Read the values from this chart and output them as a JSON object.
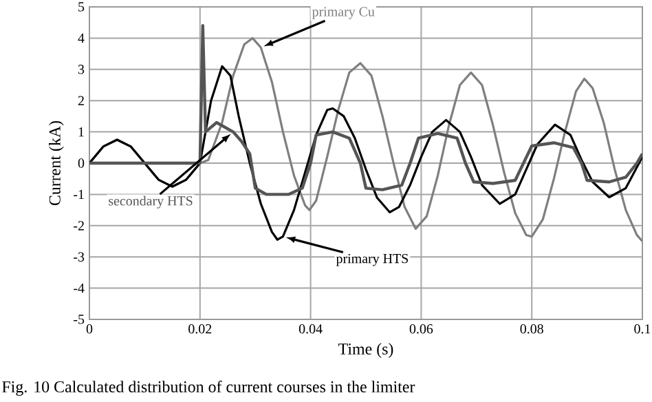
{
  "chart_data": {
    "type": "line",
    "xlabel": "Time (s)",
    "ylabel": "Current (kA)",
    "xlim": [
      0,
      0.1
    ],
    "xticks": [
      0,
      0.02,
      0.04,
      0.06,
      0.08,
      {
        "value": 0.1,
        "label": "0.1"
      }
    ],
    "ylim": [
      -5,
      5
    ],
    "yticks": [
      -5,
      -4,
      -3,
      -2,
      -1,
      0,
      1,
      2,
      3,
      4,
      5
    ],
    "grid": true,
    "line_style": "solid",
    "series": [
      {
        "name": "primary Cu",
        "color": "#7f7f7f",
        "x": [
          0,
          0.0025,
          0.005,
          0.0075,
          0.01,
          0.0125,
          0.015,
          0.0175,
          0.02,
          0.0215,
          0.024,
          0.026,
          0.028,
          0.0295,
          0.031,
          0.033,
          0.035,
          0.037,
          0.039,
          0.0398,
          0.041,
          0.043,
          0.045,
          0.047,
          0.049,
          0.051,
          0.053,
          0.055,
          0.057,
          0.059,
          0.061,
          0.063,
          0.065,
          0.067,
          0.069,
          0.071,
          0.073,
          0.075,
          0.077,
          0.079,
          0.08,
          0.082,
          0.084,
          0.086,
          0.088,
          0.0895,
          0.091,
          0.093,
          0.095,
          0.097,
          0.099,
          0.1
        ],
        "values": [
          0,
          0.53,
          0.75,
          0.53,
          0,
          -0.53,
          -0.75,
          -0.53,
          0,
          0.1,
          1.3,
          2.8,
          3.8,
          4.0,
          3.7,
          2.6,
          1.0,
          -0.4,
          -1.35,
          -1.5,
          -1.2,
          0.2,
          1.7,
          2.9,
          3.2,
          2.8,
          1.5,
          0.0,
          -1.4,
          -2.1,
          -1.7,
          -0.4,
          1.2,
          2.5,
          2.9,
          2.5,
          1.2,
          -0.3,
          -1.6,
          -2.3,
          -2.35,
          -1.8,
          -0.5,
          1.0,
          2.3,
          2.7,
          2.4,
          1.3,
          -0.2,
          -1.5,
          -2.3,
          -2.5
        ]
      },
      {
        "name": "primary HTS",
        "color": "#000000",
        "x": [
          0,
          0.0025,
          0.005,
          0.0075,
          0.01,
          0.0125,
          0.015,
          0.0175,
          0.02,
          0.0205,
          0.022,
          0.024,
          0.0255,
          0.027,
          0.029,
          0.031,
          0.033,
          0.034,
          0.035,
          0.037,
          0.039,
          0.041,
          0.043,
          0.044,
          0.046,
          0.048,
          0.05,
          0.052,
          0.0543,
          0.056,
          0.058,
          0.06,
          0.062,
          0.0645,
          0.067,
          0.069,
          0.071,
          0.0742,
          0.077,
          0.079,
          0.081,
          0.0842,
          0.087,
          0.089,
          0.091,
          0.094,
          0.097,
          0.1
        ],
        "values": [
          0,
          0.53,
          0.75,
          0.53,
          0,
          -0.53,
          -0.75,
          -0.53,
          0,
          0.5,
          2.0,
          3.1,
          2.8,
          1.5,
          0.0,
          -1.3,
          -2.2,
          -2.45,
          -2.35,
          -1.5,
          -0.3,
          0.9,
          1.7,
          1.75,
          1.5,
          0.8,
          -0.2,
          -1.1,
          -1.57,
          -1.4,
          -0.7,
          0.2,
          1.0,
          1.38,
          1.0,
          0.2,
          -0.7,
          -1.3,
          -1.0,
          -0.2,
          0.6,
          1.23,
          0.9,
          0.1,
          -0.6,
          -1.09,
          -0.8,
          0.2
        ]
      },
      {
        "name": "secondary HTS",
        "color": "#555555",
        "x": [
          0,
          0.02,
          0.0205,
          0.021,
          0.023,
          0.026,
          0.0275,
          0.029,
          0.03,
          0.032,
          0.036,
          0.0385,
          0.04,
          0.041,
          0.044,
          0.047,
          0.049,
          0.05,
          0.053,
          0.0565,
          0.058,
          0.0595,
          0.063,
          0.0665,
          0.068,
          0.0695,
          0.073,
          0.077,
          0.0785,
          0.08,
          0.084,
          0.0875,
          0.089,
          0.09,
          0.094,
          0.097,
          0.099,
          0.1
        ],
        "values": [
          0,
          0,
          4.4,
          1.0,
          1.3,
          1.0,
          0.7,
          0.3,
          -0.8,
          -1.0,
          -1.0,
          -0.8,
          0.0,
          0.9,
          1.0,
          0.8,
          0.0,
          -0.8,
          -0.85,
          -0.7,
          0.0,
          0.8,
          0.95,
          0.8,
          0.0,
          -0.6,
          -0.65,
          -0.55,
          0.0,
          0.55,
          0.65,
          0.5,
          0.0,
          -0.55,
          -0.6,
          -0.45,
          0.0,
          0.3
        ]
      }
    ],
    "annotations": [
      "Fig. 10   Calculated distribution of current courses in the limiter"
    ]
  }
}
